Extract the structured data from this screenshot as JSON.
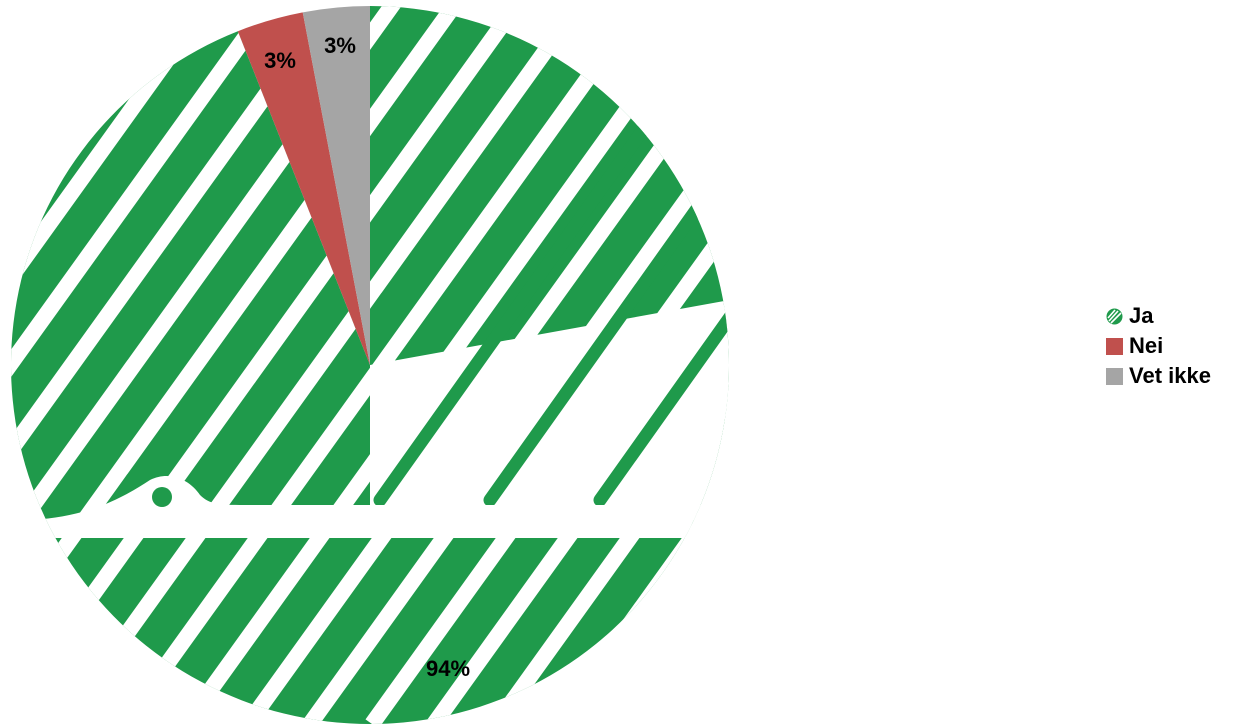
{
  "chart_data": {
    "type": "pie",
    "categories": [
      "Ja",
      "Nei",
      "Vet ikke"
    ],
    "values": [
      94,
      3,
      3
    ],
    "labels": [
      "94%",
      "3%",
      "3%"
    ],
    "colors": [
      "#1f9a4b",
      "#c0504d",
      "#a5a5a5"
    ],
    "legend_position": "right",
    "title": ""
  }
}
